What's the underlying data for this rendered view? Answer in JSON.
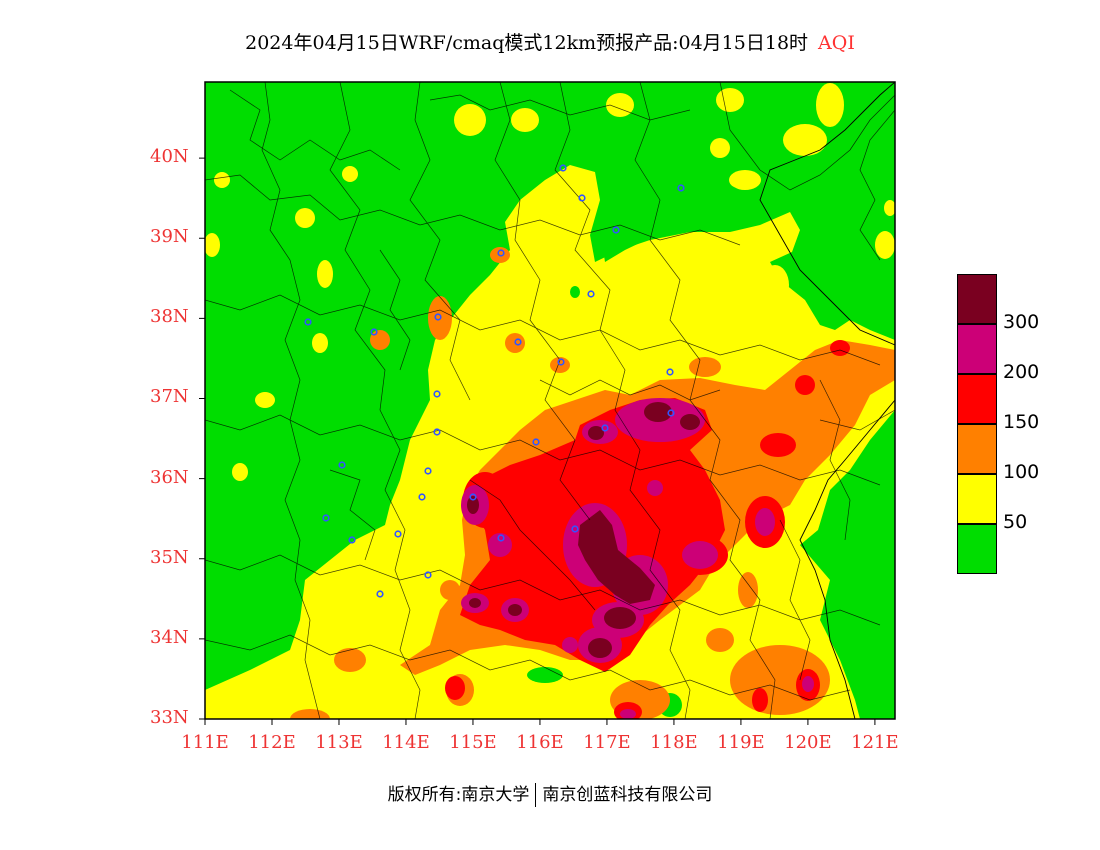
{
  "title": {
    "main": "2024年04月15日WRF/cmaq模式12km预报产品:04月15日18时",
    "variable": "AQI",
    "variable_color": "#ff3333"
  },
  "axes": {
    "lat_ticks": [
      {
        "lat": 40,
        "label": "40N"
      },
      {
        "lat": 39,
        "label": "39N"
      },
      {
        "lat": 38,
        "label": "38N"
      },
      {
        "lat": 37,
        "label": "37N"
      },
      {
        "lat": 36,
        "label": "36N"
      },
      {
        "lat": 35,
        "label": "35N"
      },
      {
        "lat": 34,
        "label": "34N"
      },
      {
        "lat": 33,
        "label": "33N"
      }
    ],
    "lon_ticks": [
      {
        "lon": 111,
        "label": "111E"
      },
      {
        "lon": 112,
        "label": "112E"
      },
      {
        "lon": 113,
        "label": "113E"
      },
      {
        "lon": 114,
        "label": "114E"
      },
      {
        "lon": 115,
        "label": "115E"
      },
      {
        "lon": 116,
        "label": "116E"
      },
      {
        "lon": 117,
        "label": "117E"
      },
      {
        "lon": 118,
        "label": "118E"
      },
      {
        "lon": 119,
        "label": "119E"
      },
      {
        "lon": 120,
        "label": "120E"
      },
      {
        "lon": 121,
        "label": "121E"
      }
    ],
    "lon_range": [
      111,
      121.3
    ],
    "lat_range": [
      33,
      40.95
    ],
    "tick_color": "#ee3333"
  },
  "colorbar": {
    "levels": [
      {
        "color": "#7a0020"
      },
      {
        "color": "#cc0077"
      },
      {
        "color": "#ff0000"
      },
      {
        "color": "#ff8000"
      },
      {
        "color": "#ffff00"
      },
      {
        "color": "#00dd00"
      }
    ],
    "labels": [
      "300",
      "200",
      "150",
      "100",
      "50"
    ]
  },
  "aqi_colors": {
    "good": "#00dd00",
    "moderate": "#ffff00",
    "sensitive": "#ff8000",
    "unhealthy": "#ff0000",
    "very_unhealthy": "#cc0077",
    "hazardous": "#7a0020"
  },
  "credit": {
    "left": "版权所有:南京大学",
    "right": "南京创蓝科技有限公司"
  }
}
